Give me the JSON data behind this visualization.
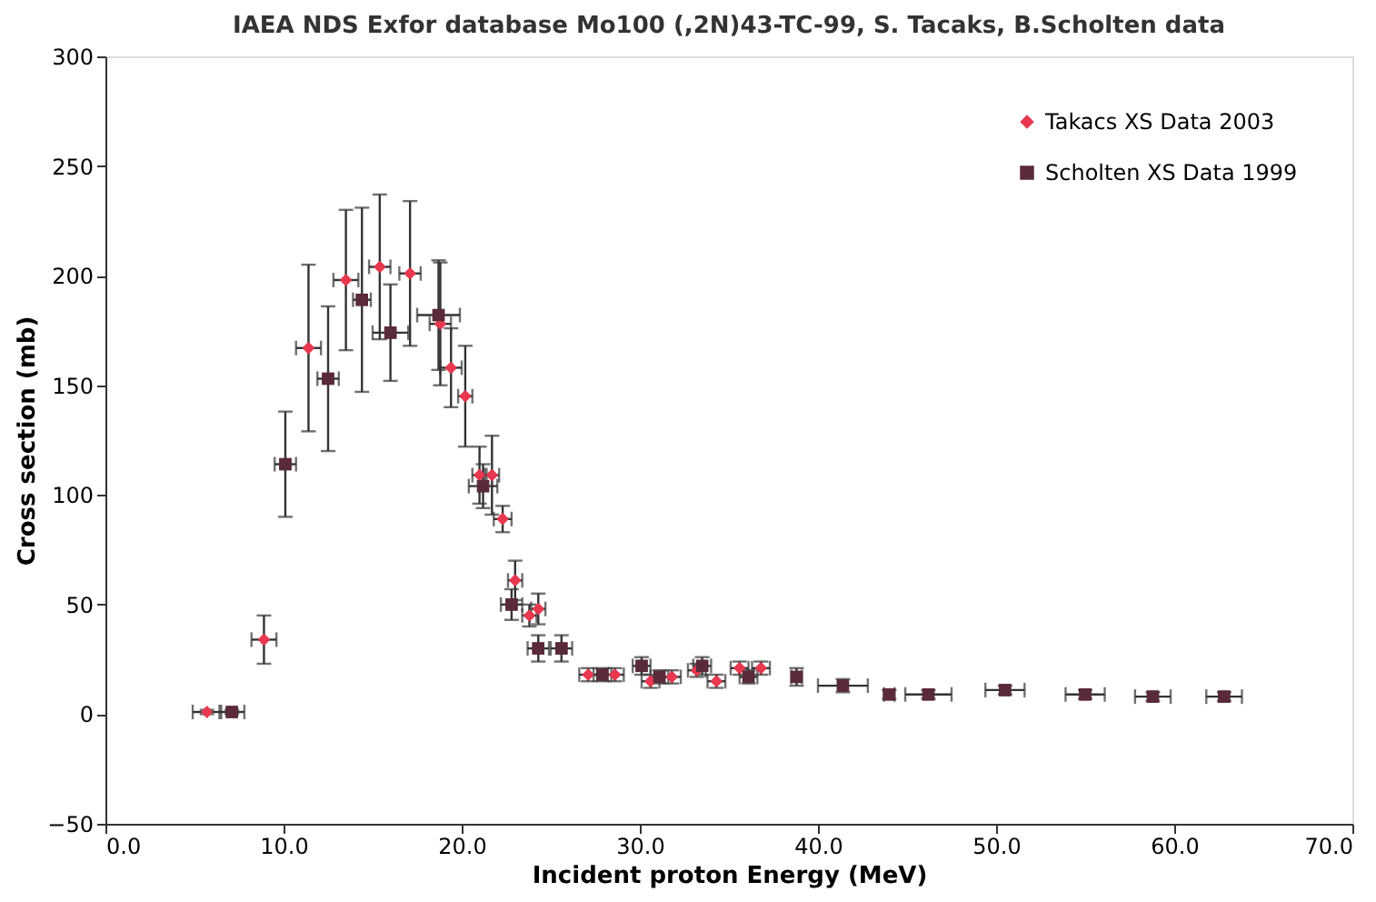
{
  "chart_data": {
    "type": "scatter",
    "title": "IAEA NDS Exfor database Mo100 (,2N)43-TC-99, S. Tacaks, B.Scholten data",
    "xlabel": "Incident proton Energy (MeV)",
    "ylabel": "Cross section (mb)",
    "xlim": [
      0,
      70
    ],
    "ylim": [
      -50,
      300
    ],
    "xticks": [
      {
        "value": 0,
        "label": "0.0"
      },
      {
        "value": 10,
        "label": "10.0"
      },
      {
        "value": 20,
        "label": "20.0"
      },
      {
        "value": 30,
        "label": "30.0"
      },
      {
        "value": 40,
        "label": "40.0"
      },
      {
        "value": 50,
        "label": "50.0"
      },
      {
        "value": 60,
        "label": "60.0"
      },
      {
        "value": 70,
        "label": "70.0"
      }
    ],
    "yticks": [
      -50,
      0,
      50,
      100,
      150,
      200,
      250,
      300
    ],
    "grid": false,
    "legend": "top right",
    "series": [
      {
        "name": "Takacs XS Data 2003",
        "color": "#e8384f",
        "marker": "diamond",
        "x": [
          5.7,
          8.9,
          11.4,
          13.5,
          15.4,
          17.1,
          18.8,
          19.4,
          20.2,
          21.0,
          21.7,
          22.3,
          23.0,
          23.8,
          24.3,
          27.1,
          28.6,
          30.6,
          31.8,
          33.2,
          34.3,
          35.6,
          36.8
        ],
        "values": [
          1,
          34,
          167,
          198,
          204,
          201,
          178,
          158,
          145,
          109,
          109,
          89,
          61,
          45,
          48,
          18,
          18,
          15,
          17,
          20,
          15,
          21,
          21
        ],
        "errors": [
          1,
          11,
          38,
          32,
          33,
          33,
          28,
          18,
          23,
          13,
          18,
          6,
          9,
          5,
          7,
          3,
          3,
          3,
          3,
          3,
          3,
          3,
          3
        ],
        "xerrors": [
          0.8,
          0.7,
          0.7,
          0.7,
          0.6,
          0.6,
          0.6,
          0.6,
          0.4,
          0.4,
          0.4,
          0.5,
          0.4,
          0.4,
          0.4,
          0.5,
          0.5,
          0.5,
          0.5,
          0.5,
          0.5,
          0.5,
          0.5
        ]
      },
      {
        "name": "Scholten XS Data 1999",
        "color": "#5a2a3a",
        "marker": "square",
        "x": [
          7.1,
          10.1,
          12.5,
          14.4,
          16.0,
          18.7,
          21.2,
          22.8,
          24.3,
          25.6,
          27.9,
          30.1,
          31.1,
          33.5,
          36.1,
          38.8,
          41.4,
          44.0,
          46.2,
          50.5,
          55.0,
          58.8,
          62.8
        ],
        "values": [
          1,
          114,
          153,
          189,
          174,
          182,
          104,
          50,
          30,
          30,
          18,
          22,
          17,
          22,
          17,
          17,
          13,
          9,
          9,
          11,
          9,
          8,
          8
        ],
        "errors": [
          1,
          24,
          33,
          42,
          22,
          25,
          10,
          7,
          6,
          6,
          3,
          4,
          3,
          4,
          3,
          4,
          3,
          2,
          2,
          2,
          2,
          2,
          2
        ],
        "xerrors": [
          0.7,
          0.6,
          0.6,
          0.5,
          1.0,
          1.2,
          0.8,
          0.6,
          0.6,
          0.6,
          0.5,
          0.5,
          0.5,
          0.5,
          0.5,
          0.3,
          1.4,
          0.3,
          1.3,
          1.1,
          1.1,
          1.0,
          1.0
        ]
      }
    ]
  }
}
